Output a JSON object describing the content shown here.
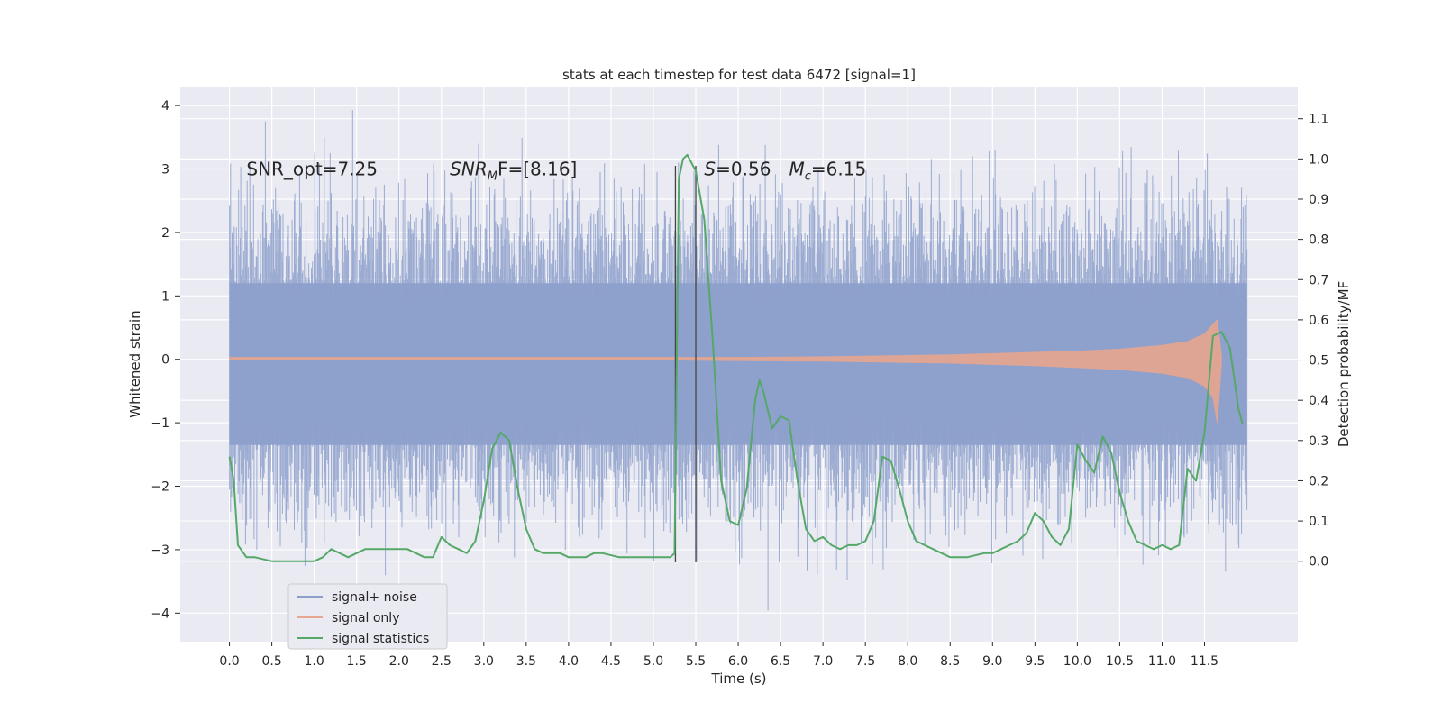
{
  "chart_data": {
    "type": "line",
    "title": "stats at each timestep for test data 6472 [signal=1]",
    "xlabel": "Time (s)",
    "ylabel_left": "Whitened strain",
    "ylabel_right": "Detection probability/MF",
    "xlim": [
      -0.58,
      12.6
    ],
    "ylim_left": [
      -4.45,
      4.3
    ],
    "ylim_right": [
      -0.2,
      1.18
    ],
    "x_ticks": [
      "0.0",
      "0.5",
      "1.0",
      "1.5",
      "2.0",
      "2.5",
      "3.0",
      "3.5",
      "4.0",
      "4.5",
      "5.0",
      "5.5",
      "6.0",
      "6.5",
      "7.0",
      "7.5",
      "8.0",
      "8.5",
      "9.0",
      "9.5",
      "10.0",
      "10.5",
      "11.0",
      "11.5"
    ],
    "y_ticks_left": [
      "−4",
      "−3",
      "−2",
      "−1",
      "0",
      "1",
      "2",
      "3",
      "4"
    ],
    "y_ticks_right": [
      "0.0",
      "0.1",
      "0.2",
      "0.3",
      "0.4",
      "0.5",
      "0.6",
      "0.7",
      "0.8",
      "0.9",
      "1.0",
      "1.1"
    ],
    "grid": true,
    "legend_position": "lower-left",
    "annotations": [
      {
        "text": "SNR_opt=7.25",
        "x": 0.2,
        "y": 3.0
      },
      {
        "text": "SNR",
        "sub": "M",
        "suffix": "F=[8.16]",
        "x": 2.6,
        "y": 3.0
      },
      {
        "text": "S",
        "suffix": "=0.56",
        "x": 5.6,
        "y": 3.0
      },
      {
        "text": "M",
        "sub": "c",
        "suffix": "=6.15",
        "x": 6.6,
        "y": 3.0
      }
    ],
    "vlines": [
      {
        "x": 5.26,
        "y_from": -3.2,
        "y_to": 3.05
      },
      {
        "x": 5.5,
        "y_from": -3.2,
        "y_to": 3.05
      }
    ],
    "series": [
      {
        "name": "signal+ noise",
        "color": "#8da0cb",
        "noise_envelope": {
          "x_start": 0.0,
          "x_end": 12.0,
          "typical_upper": 1.2,
          "typical_lower": -1.35,
          "peak_upper": 3.95,
          "peak_lower": -4.05
        }
      },
      {
        "name": "signal only",
        "color": "#e8a68e",
        "amplitude": {
          "x": [
            0.0,
            1.0,
            2.0,
            3.0,
            4.0,
            5.0,
            6.0,
            7.0,
            7.5,
            8.0,
            8.5,
            9.0,
            9.5,
            10.0,
            10.5,
            11.0,
            11.3,
            11.5,
            11.6,
            11.65,
            11.7
          ],
          "upper": [
            0.03,
            0.03,
            0.03,
            0.03,
            0.03,
            0.03,
            0.03,
            0.04,
            0.05,
            0.06,
            0.07,
            0.09,
            0.11,
            0.13,
            0.16,
            0.22,
            0.28,
            0.4,
            0.55,
            0.62,
            0.05
          ],
          "lower": [
            -0.01,
            -0.01,
            -0.01,
            -0.01,
            -0.01,
            -0.01,
            -0.02,
            -0.03,
            -0.04,
            -0.05,
            -0.06,
            -0.08,
            -0.1,
            -0.13,
            -0.16,
            -0.22,
            -0.29,
            -0.42,
            -0.6,
            -1.0,
            -0.05
          ]
        }
      },
      {
        "name": "signal statistics",
        "color": "#55a868",
        "axis": "right",
        "x": [
          0.0,
          0.05,
          0.1,
          0.2,
          0.3,
          0.5,
          0.8,
          1.0,
          1.1,
          1.2,
          1.3,
          1.4,
          1.5,
          1.6,
          1.7,
          1.8,
          2.0,
          2.1,
          2.2,
          2.3,
          2.4,
          2.5,
          2.6,
          2.7,
          2.8,
          2.9,
          3.0,
          3.1,
          3.2,
          3.3,
          3.4,
          3.5,
          3.6,
          3.7,
          3.8,
          3.9,
          4.0,
          4.2,
          4.3,
          4.4,
          4.6,
          4.8,
          5.0,
          5.2,
          5.25,
          5.3,
          5.35,
          5.4,
          5.5,
          5.6,
          5.7,
          5.8,
          5.9,
          6.0,
          6.1,
          6.2,
          6.25,
          6.3,
          6.4,
          6.5,
          6.6,
          6.7,
          6.8,
          6.9,
          7.0,
          7.1,
          7.2,
          7.3,
          7.4,
          7.5,
          7.6,
          7.7,
          7.8,
          7.9,
          8.0,
          8.1,
          8.2,
          8.3,
          8.5,
          8.7,
          8.9,
          9.0,
          9.1,
          9.2,
          9.3,
          9.4,
          9.5,
          9.6,
          9.7,
          9.8,
          9.9,
          10.0,
          10.1,
          10.2,
          10.3,
          10.4,
          10.5,
          10.6,
          10.7,
          10.8,
          10.9,
          11.0,
          11.1,
          11.2,
          11.3,
          11.4,
          11.5,
          11.6,
          11.7,
          11.8,
          11.9,
          11.95
        ],
        "y": [
          0.26,
          0.2,
          0.04,
          0.01,
          0.01,
          0.0,
          0.0,
          0.0,
          0.01,
          0.03,
          0.02,
          0.01,
          0.02,
          0.03,
          0.03,
          0.03,
          0.03,
          0.03,
          0.02,
          0.01,
          0.01,
          0.06,
          0.04,
          0.03,
          0.02,
          0.05,
          0.15,
          0.28,
          0.32,
          0.3,
          0.18,
          0.08,
          0.03,
          0.02,
          0.02,
          0.02,
          0.01,
          0.01,
          0.02,
          0.02,
          0.01,
          0.01,
          0.01,
          0.01,
          0.02,
          0.95,
          1.0,
          1.01,
          0.97,
          0.85,
          0.55,
          0.2,
          0.1,
          0.09,
          0.18,
          0.4,
          0.45,
          0.42,
          0.33,
          0.36,
          0.35,
          0.2,
          0.08,
          0.05,
          0.06,
          0.04,
          0.03,
          0.04,
          0.04,
          0.05,
          0.1,
          0.26,
          0.25,
          0.18,
          0.1,
          0.05,
          0.04,
          0.03,
          0.01,
          0.01,
          0.02,
          0.02,
          0.03,
          0.04,
          0.05,
          0.07,
          0.12,
          0.1,
          0.06,
          0.04,
          0.08,
          0.29,
          0.25,
          0.22,
          0.31,
          0.27,
          0.17,
          0.1,
          0.05,
          0.04,
          0.03,
          0.04,
          0.03,
          0.04,
          0.23,
          0.2,
          0.32,
          0.56,
          0.57,
          0.53,
          0.38,
          0.34
        ]
      }
    ]
  }
}
